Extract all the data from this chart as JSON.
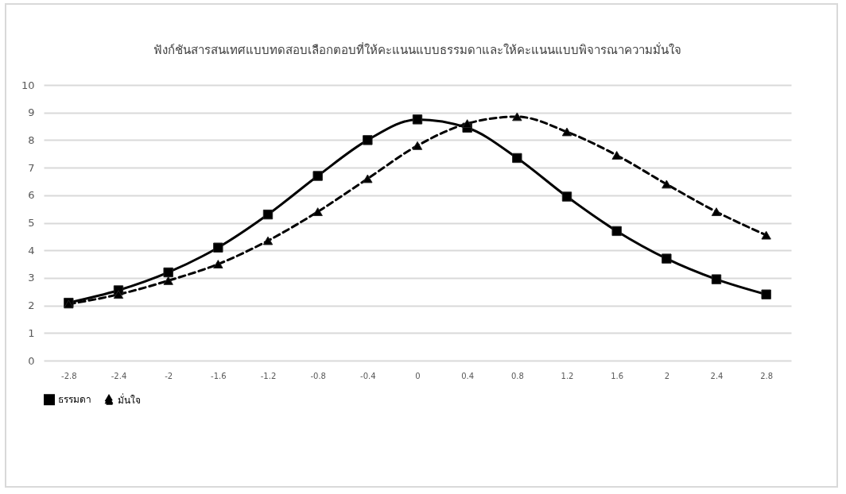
{
  "chart_data": {
    "type": "line",
    "title": "ฟังก์ชันสารสนเทศแบบทดสอบเลือกตอบที่ให้คะแนนแบบธรรมดาและให้คะแนนแบบพิจารณาความมั่นใจ",
    "categories": [
      "-2.8",
      "-2.4",
      "-2",
      "-1.6",
      "-1.2",
      "-0.8",
      "-0.4",
      "0",
      "0.4",
      "0.8",
      "1.2",
      "1.6",
      "2",
      "2.4",
      "2.8"
    ],
    "series": [
      {
        "name": "ธรรมดา",
        "color": "#000000",
        "marker": "square",
        "line_style": "solid",
        "values": [
          2.1,
          2.55,
          3.2,
          4.1,
          5.3,
          6.7,
          8.0,
          8.75,
          8.45,
          7.35,
          5.95,
          4.7,
          3.7,
          2.95,
          2.4
        ]
      },
      {
        "name": "มั่นใจ",
        "color": "#000000",
        "marker": "triangle",
        "line_style": "dashed",
        "values": [
          2.05,
          2.4,
          2.9,
          3.5,
          4.35,
          5.4,
          6.6,
          7.8,
          8.6,
          8.85,
          8.3,
          7.45,
          6.4,
          5.4,
          4.55
        ]
      }
    ],
    "ylim": [
      0,
      10
    ],
    "yticks": [
      0,
      1,
      2,
      3,
      4,
      5,
      6,
      7,
      8,
      9,
      10
    ],
    "grid": "y",
    "legend": "bottom"
  }
}
